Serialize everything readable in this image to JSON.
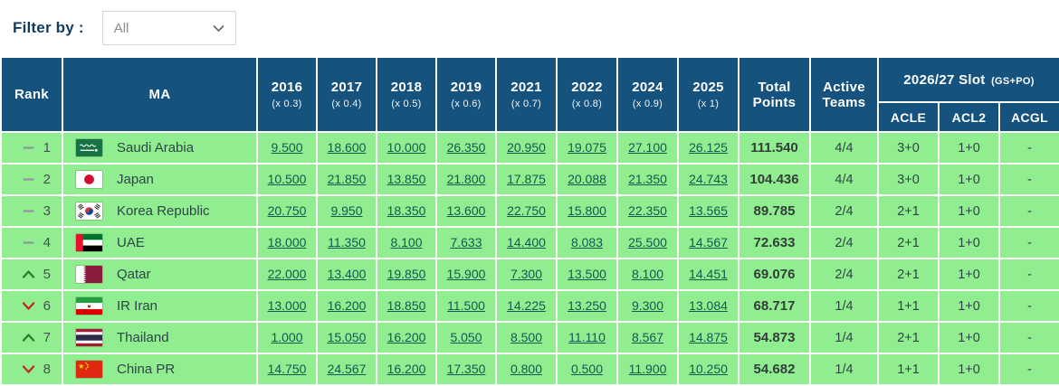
{
  "filter": {
    "label": "Filter by :",
    "selected": "All"
  },
  "colors": {
    "header_bg": "#15537E",
    "row_bg": "#90EE90",
    "link": "#0D5C50",
    "trend_up": "#2F7D33",
    "trend_down": "#C02929",
    "trend_same": "#8F9897"
  },
  "table": {
    "headers": {
      "rank": "Rank",
      "ma": "MA",
      "years": [
        {
          "year": "2016",
          "mult": "(x 0.3)"
        },
        {
          "year": "2017",
          "mult": "(x 0.4)"
        },
        {
          "year": "2018",
          "mult": "(x 0.5)"
        },
        {
          "year": "2019",
          "mult": "(x 0.6)"
        },
        {
          "year": "2021",
          "mult": "(x 0.7)"
        },
        {
          "year": "2022",
          "mult": "(x 0.8)"
        },
        {
          "year": "2024",
          "mult": "(x 0.9)"
        },
        {
          "year": "2025",
          "mult": "(x 1)"
        }
      ],
      "total": "Total Points",
      "active": "Active Teams",
      "slot": "2026/27 Slot",
      "slot_suffix": "(GS+PO)",
      "slot_subs": [
        "ACLE",
        "ACL2",
        "ACGL"
      ]
    },
    "rows": [
      {
        "trend": "same",
        "rank": "1",
        "flag": "saudi-arabia",
        "ma": "Saudi Arabia",
        "scores": [
          "9.500",
          "18.600",
          "10.000",
          "26.350",
          "20.950",
          "19.075",
          "27.100",
          "26.125"
        ],
        "total": "111.540",
        "active": "4/4",
        "acle": "3+0",
        "acl2": "1+0",
        "acgl": "-"
      },
      {
        "trend": "same",
        "rank": "2",
        "flag": "japan",
        "ma": "Japan",
        "scores": [
          "10.500",
          "21.850",
          "13.850",
          "21.800",
          "17.875",
          "20.088",
          "21.350",
          "24.743"
        ],
        "total": "104.436",
        "active": "4/4",
        "acle": "3+0",
        "acl2": "1+0",
        "acgl": "-"
      },
      {
        "trend": "same",
        "rank": "3",
        "flag": "korea-republic",
        "ma": "Korea Republic",
        "scores": [
          "20.750",
          "9.950",
          "18.350",
          "13.600",
          "22.750",
          "15.800",
          "22.350",
          "13.565"
        ],
        "total": "89.785",
        "active": "2/4",
        "acle": "2+1",
        "acl2": "1+0",
        "acgl": "-"
      },
      {
        "trend": "same",
        "rank": "4",
        "flag": "uae",
        "ma": "UAE",
        "scores": [
          "18.000",
          "11.350",
          "8.100",
          "7.633",
          "14.400",
          "8.083",
          "25.500",
          "14.567"
        ],
        "total": "72.633",
        "active": "2/4",
        "acle": "2+1",
        "acl2": "1+0",
        "acgl": "-"
      },
      {
        "trend": "up",
        "rank": "5",
        "flag": "qatar",
        "ma": "Qatar",
        "scores": [
          "22.000",
          "13.400",
          "19.850",
          "15.900",
          "7.300",
          "13.500",
          "8.100",
          "14.451"
        ],
        "total": "69.076",
        "active": "2/4",
        "acle": "2+1",
        "acl2": "1+0",
        "acgl": "-"
      },
      {
        "trend": "down",
        "rank": "6",
        "flag": "ir-iran",
        "ma": "IR Iran",
        "scores": [
          "13.000",
          "16.200",
          "18.850",
          "11.500",
          "14.225",
          "13.250",
          "9.300",
          "13.084"
        ],
        "total": "68.717",
        "active": "1/4",
        "acle": "1+1",
        "acl2": "1+0",
        "acgl": "-"
      },
      {
        "trend": "up",
        "rank": "7",
        "flag": "thailand",
        "ma": "Thailand",
        "scores": [
          "1.000",
          "15.050",
          "16.200",
          "5.050",
          "8.500",
          "11.110",
          "8.567",
          "14.875"
        ],
        "total": "54.873",
        "active": "1/4",
        "acle": "2+1",
        "acl2": "1+0",
        "acgl": "-"
      },
      {
        "trend": "down",
        "rank": "8",
        "flag": "china-pr",
        "ma": "China PR",
        "scores": [
          "14.750",
          "24.567",
          "16.200",
          "17.350",
          "0.800",
          "0.500",
          "11.900",
          "10.250"
        ],
        "total": "54.682",
        "active": "1/4",
        "acle": "1+1",
        "acl2": "1+0",
        "acgl": "-"
      }
    ]
  }
}
